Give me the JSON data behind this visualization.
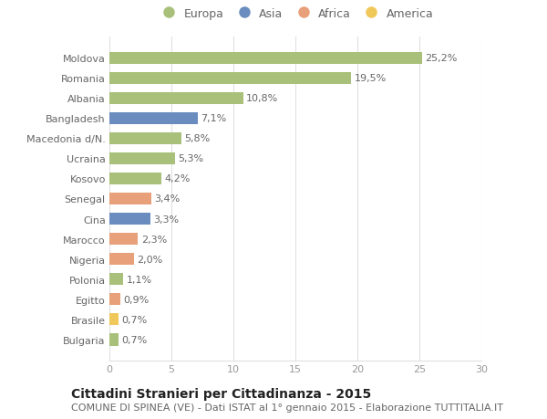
{
  "countries": [
    "Moldova",
    "Romania",
    "Albania",
    "Bangladesh",
    "Macedonia d/N.",
    "Ucraina",
    "Kosovo",
    "Senegal",
    "Cina",
    "Marocco",
    "Nigeria",
    "Polonia",
    "Egitto",
    "Brasile",
    "Bulgaria"
  ],
  "values": [
    25.2,
    19.5,
    10.8,
    7.1,
    5.8,
    5.3,
    4.2,
    3.4,
    3.3,
    2.3,
    2.0,
    1.1,
    0.9,
    0.7,
    0.7
  ],
  "labels": [
    "25,2%",
    "19,5%",
    "10,8%",
    "7,1%",
    "5,8%",
    "5,3%",
    "4,2%",
    "3,4%",
    "3,3%",
    "2,3%",
    "2,0%",
    "1,1%",
    "0,9%",
    "0,7%",
    "0,7%"
  ],
  "continents": [
    "Europa",
    "Europa",
    "Europa",
    "Asia",
    "Europa",
    "Europa",
    "Europa",
    "Africa",
    "Asia",
    "Africa",
    "Africa",
    "Europa",
    "Africa",
    "America",
    "Europa"
  ],
  "colors": {
    "Europa": "#a8c07a",
    "Asia": "#6b8cbf",
    "Africa": "#e8a07a",
    "America": "#f0c85a"
  },
  "legend_order": [
    "Europa",
    "Asia",
    "Africa",
    "America"
  ],
  "xlim": [
    0,
    30
  ],
  "xticks": [
    0,
    5,
    10,
    15,
    20,
    25,
    30
  ],
  "title": "Cittadini Stranieri per Cittadinanza - 2015",
  "subtitle": "COMUNE DI SPINEA (VE) - Dati ISTAT al 1° gennaio 2015 - Elaborazione TUTTITALIA.IT",
  "bg_color": "#ffffff",
  "grid_color": "#e0e0e0",
  "bar_height": 0.6,
  "label_fontsize": 8,
  "title_fontsize": 10,
  "subtitle_fontsize": 8,
  "ytick_fontsize": 8,
  "xtick_fontsize": 8,
  "label_color": "#666666",
  "ytick_color": "#666666",
  "xtick_color": "#999999",
  "title_color": "#222222",
  "subtitle_color": "#666666"
}
